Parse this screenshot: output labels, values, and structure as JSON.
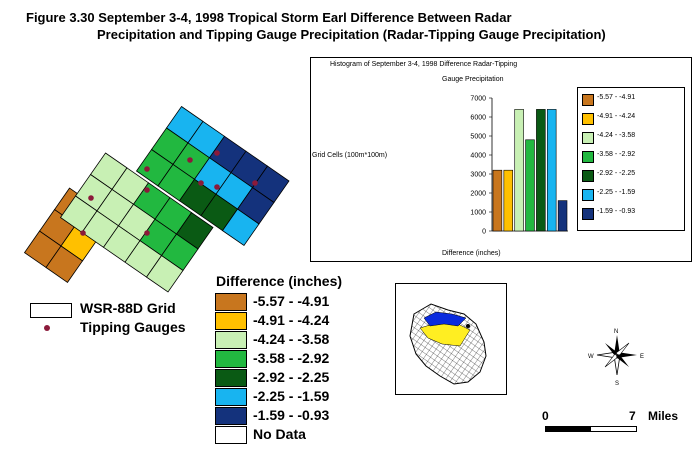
{
  "title_line1": "Figure 3.30  September 3-4, 1998 Tropical Storm Earl Difference Between Radar",
  "title_line2": "Precipitation and Tipping Gauge Precipitation (Radar-Tipping Gauge Precipitation)",
  "histogram": {
    "title_line1": "Histogram of September 3-4, 1998 Difference Radar-Tipping",
    "title_line2": "Gauge Precipitation",
    "ylabel": "Grid Cells (100m*100m)",
    "xlabel": "Difference (inches)",
    "yticks": [
      "7000",
      "6000",
      "5000",
      "4000",
      "3000",
      "2000",
      "1000",
      "0"
    ]
  },
  "chart_data": {
    "type": "bar",
    "title": "Histogram of September 3-4, 1998 Difference Radar-Tipping Gauge Precipitation",
    "xlabel": "Difference (inches)",
    "ylabel": "Grid Cells (100m*100m)",
    "ylim": [
      0,
      7000
    ],
    "categories": [
      "-5.57 - -4.91",
      "-4.91 - -4.24",
      "-4.24 - -3.58",
      "-3.58 - -2.92",
      "-2.92 - -2.25",
      "-2.25 - -1.59",
      "-1.59 - -0.93"
    ],
    "values": [
      3200,
      3200,
      6400,
      4800,
      6400,
      6400,
      1600
    ],
    "colors": [
      "#C8761E",
      "#FFC000",
      "#C8F0B4",
      "#22B840",
      "#0A5A14",
      "#18B4F0",
      "#14327C"
    ],
    "grid": false,
    "legend": "right"
  },
  "grid_legend": {
    "grid_label": "WSR-88D Grid",
    "gauge_label": "Tipping Gauges"
  },
  "legend": {
    "title": "Difference (inches)",
    "items": [
      {
        "label": "-5.57 - -4.91",
        "color": "#C8761E"
      },
      {
        "label": "-4.91 - -4.24",
        "color": "#FFC000"
      },
      {
        "label": "-4.24 - -3.58",
        "color": "#C8F0B4"
      },
      {
        "label": "-3.58 - -2.92",
        "color": "#22B840"
      },
      {
        "label": "-2.92 - -2.25",
        "color": "#0A5A14"
      },
      {
        "label": "-2.25 - -1.59",
        "color": "#18B4F0"
      },
      {
        "label": "-1.59 - -0.93",
        "color": "#14327C"
      },
      {
        "label": "No Data",
        "color": "#FFFFFF"
      }
    ]
  },
  "scale": {
    "start": "0",
    "end": "7",
    "unit": "Miles"
  },
  "compass": {
    "n": "N",
    "s": "S",
    "e": "E",
    "w": "W"
  }
}
